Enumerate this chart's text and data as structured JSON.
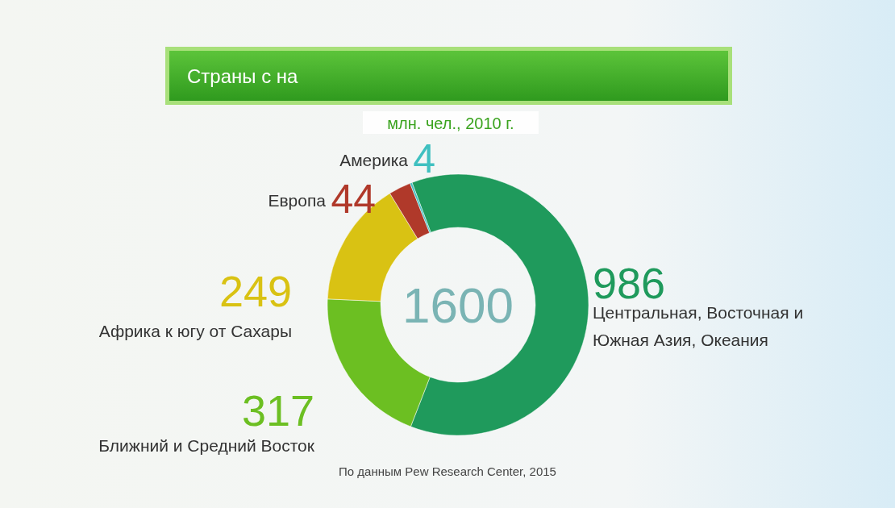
{
  "chart_data": {
    "type": "donut",
    "title": "Страны с на",
    "subtitle": "млн. чел., 2010 г.",
    "categories": [
      "Центральная, Восточная и Южная Азия, Океания",
      "Ближний и Средний Восток",
      "Африка к югу от Сахары",
      "Европа",
      "Америка"
    ],
    "values": [
      986,
      317,
      249,
      44,
      4
    ],
    "colors": [
      "#1f9a5c",
      "#6cbf22",
      "#d9c213",
      "#b0392a",
      "#3fc0c0"
    ],
    "data_labels": true,
    "annotations": [
      "1600",
      "По данным Pew Research Center, 2015"
    ]
  }
}
